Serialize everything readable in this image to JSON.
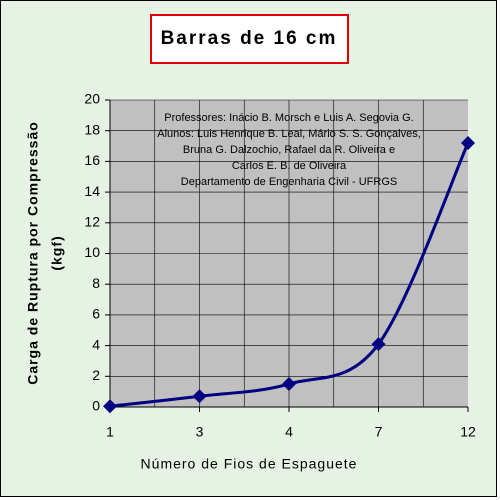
{
  "chart_data": {
    "type": "line",
    "title": "Barras de 16 cm",
    "x_label": "Número de Fios de Espaguete",
    "y_label": [
      "Carga de Ruptura por Compressão",
      "(kgf)"
    ],
    "annotations": [
      "Professores: Inácio B. Morsch e Luis A. Segovia G.",
      "Alunos: Luis Henrique B. Leal, Mário S. S. Gonçalves,",
      "Bruna G. Dalzochio, Rafael da R. Oliveira e",
      "Carlos E. B. de Oliveira",
      "Departamento de Engenharia Civil - UFRGS"
    ],
    "categories": [
      "1",
      "3",
      "4",
      "7",
      "12"
    ],
    "series": [
      {
        "name": "Barras de 16 cm",
        "color": "#000080",
        "values": [
          0.05,
          0.7,
          1.5,
          4.1,
          17.2
        ]
      }
    ],
    "ylim": [
      0,
      20
    ],
    "yticks": [
      0,
      2,
      4,
      6,
      8,
      10,
      12,
      14,
      16,
      18,
      20
    ],
    "grid": true,
    "smooth": true
  }
}
